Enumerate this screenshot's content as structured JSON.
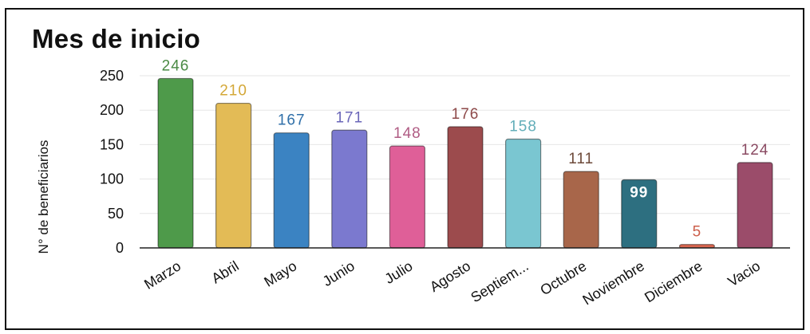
{
  "chart_data": {
    "type": "bar",
    "title": "Mes de inicio",
    "ylabel": "N° de beneficiarios",
    "xlabel": "",
    "ylim": [
      0,
      260
    ],
    "yticks": [
      0,
      50,
      100,
      150,
      200,
      250
    ],
    "grid": true,
    "categories": [
      "Marzo",
      "Abril",
      "Mayo",
      "Junio",
      "Julio",
      "Agosto",
      "Septiem...",
      "Octubre",
      "Noviembre",
      "Diciembre",
      "Vacio"
    ],
    "values": [
      246,
      210,
      167,
      171,
      148,
      176,
      158,
      111,
      99,
      5,
      124
    ],
    "colors": [
      "#4e9a4a",
      "#e3bb56",
      "#3b83c2",
      "#7b79cf",
      "#df5f98",
      "#9c4b4d",
      "#7ac6d1",
      "#a8664a",
      "#2d6f80",
      "#d9664f",
      "#9b4c6a"
    ],
    "label_colors": [
      "#4a8a44",
      "#d4a838",
      "#2f6fa8",
      "#6a66b8",
      "#b05c84",
      "#8e4a4a",
      "#63aeb9",
      "#6d4a3a",
      "#ffffff",
      "#cc5e4a",
      "#8a4a62"
    ]
  }
}
